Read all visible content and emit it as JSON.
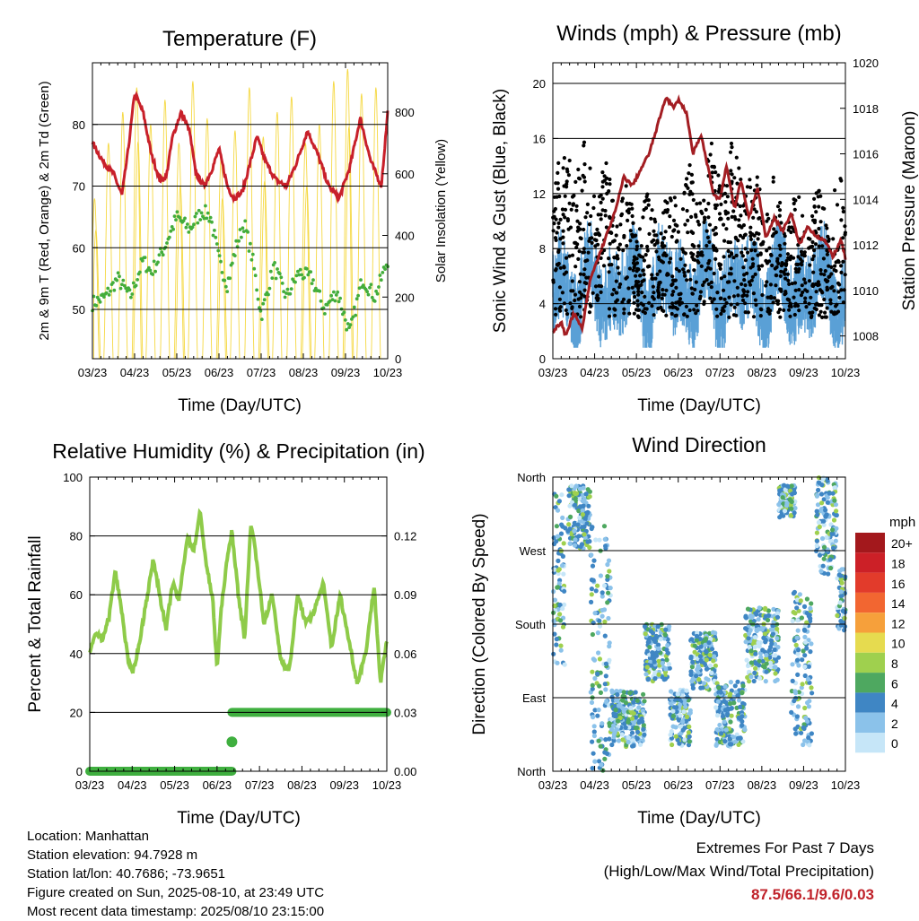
{
  "panels": {
    "temperature": {
      "title": "Temperature (F)",
      "ylabel_left": "2m & 9m T (Red, Orange) & 2m Td (Green)",
      "ylabel_right": "Solar Insolation (Yellow)",
      "xlabel": "Time (Day/UTC)",
      "left_ticks": [
        "50",
        "60",
        "70",
        "80"
      ],
      "right_ticks": [
        "0",
        "200",
        "400",
        "600",
        "800"
      ]
    },
    "winds": {
      "title": "Winds (mph) & Pressure (mb)",
      "ylabel_left": "Sonic Wind & Gust (Blue, Black)",
      "ylabel_right": "Station Pressure (Maroon)",
      "xlabel": "Time (Day/UTC)",
      "left_ticks": [
        "0",
        "4",
        "8",
        "12",
        "16",
        "20"
      ],
      "right_ticks": [
        "1008",
        "1010",
        "1012",
        "1014",
        "1016",
        "1018",
        "1020"
      ]
    },
    "humidity": {
      "title": "Relative Humidity (%) & Precipitation (in)",
      "ylabel_left": "Percent & Total Rainfall",
      "xlabel": "Time (Day/UTC)",
      "left_ticks": [
        "0",
        "20",
        "40",
        "60",
        "80",
        "100"
      ],
      "right_ticks": [
        "0.00",
        "0.03",
        "0.06",
        "0.09",
        "0.12"
      ]
    },
    "direction": {
      "title": "Wind Direction",
      "ylabel_left": "Direction (Colored By Speed)",
      "xlabel": "Time (Day/UTC)",
      "left_ticks": [
        "North",
        "East",
        "South",
        "West",
        "North"
      ]
    }
  },
  "x_tick_labels": [
    "03/23",
    "04/23",
    "05/23",
    "06/23",
    "07/23",
    "08/23",
    "09/23",
    "10/23"
  ],
  "legend": {
    "title": "mph",
    "labels": [
      "20+",
      "18",
      "16",
      "14",
      "12",
      "10",
      "8",
      "6",
      "4",
      "2",
      "0"
    ],
    "colors": [
      "#a3181c",
      "#cc2027",
      "#e23b2b",
      "#f26631",
      "#f6a03b",
      "#e6db4f",
      "#9fd04e",
      "#4ea860",
      "#3f86c4",
      "#8bc2ea",
      "#c6e6f8"
    ]
  },
  "colors": {
    "temperature_2m": "#c8202a",
    "dewpoint": "#43ad3b",
    "insolation": "#f5d842",
    "gust": "#000000",
    "wind": "#5aa0d6",
    "pressure": "#a31d22",
    "rh": "#8ecb49",
    "precip": "#3faf3f"
  },
  "info": {
    "location": "Location: Manhattan",
    "elevation": "Station elevation: 94.7928 m",
    "latlon": "Station lat/lon: 40.7686; -73.9651",
    "created": "Figure created on Sun, 2025-08-10, at 23:49 UTC",
    "recent": "Most recent data timestamp: 2025/08/10 23:15:00"
  },
  "extremes": {
    "line1": "Extremes For Past 7 Days",
    "line2": "(High/Low/Max Wind/Total Precipitation)",
    "values": "87.5/66.1/9.6/0.03"
  },
  "chart_data": [
    {
      "type": "line",
      "title": "Temperature (F)",
      "xlabel": "Time (Day/UTC)",
      "ylabel": "2m & 9m T (Red, Orange) & 2m Td (Green)",
      "y2label": "Solar Insolation (Yellow)",
      "ylim": [
        42,
        90
      ],
      "y2lim": [
        0,
        960
      ],
      "x_tick_labels": [
        "03/23",
        "04/23",
        "05/23",
        "06/23",
        "07/23",
        "08/23",
        "09/23",
        "10/23"
      ],
      "xlim": [
        0,
        7
      ],
      "series": [
        {
          "name": "2m & 9m T",
          "axis": "left",
          "x": [
            0,
            0.25,
            0.5,
            0.7,
            0.85,
            1.0,
            1.2,
            1.4,
            1.6,
            1.75,
            1.9,
            2.1,
            2.3,
            2.45,
            2.65,
            2.85,
            3.0,
            3.2,
            3.35,
            3.55,
            3.75,
            3.9,
            4.1,
            4.35,
            4.6,
            4.85,
            5.1,
            5.35,
            5.6,
            5.85,
            6.1,
            6.35,
            6.6,
            6.85,
            7.0
          ],
          "values": [
            77,
            74,
            72,
            68.5,
            76,
            85,
            82,
            75,
            71,
            71.5,
            78,
            82,
            79,
            72,
            70,
            73,
            76,
            70,
            68,
            69,
            74,
            78,
            74,
            71,
            70,
            74,
            79,
            75,
            70,
            68,
            73,
            81,
            74,
            70,
            82
          ]
        },
        {
          "name": "2m Td",
          "axis": "left",
          "x": [
            0,
            0.3,
            0.6,
            0.9,
            1.2,
            1.4,
            1.7,
            2.0,
            2.3,
            2.6,
            2.8,
            3.0,
            3.2,
            3.4,
            3.6,
            3.8,
            4.0,
            4.3,
            4.6,
            4.9,
            5.2,
            5.5,
            5.8,
            6.1,
            6.4,
            6.7,
            7.0
          ],
          "values": [
            51,
            52,
            55,
            52,
            58,
            56,
            60,
            65,
            63,
            66,
            65,
            58,
            54,
            60,
            64,
            58,
            49,
            57,
            52,
            56,
            55,
            50,
            53,
            46,
            55,
            52,
            58
          ]
        },
        {
          "name": "Solar Insolation",
          "axis": "right",
          "x": [
            0.05,
            0.38,
            0.72,
            1.05,
            1.38,
            1.72,
            2.05,
            2.38,
            2.72,
            3.05,
            3.38,
            3.72,
            4.05,
            4.38,
            4.72,
            5.05,
            5.38,
            5.72,
            6.05,
            6.38,
            6.72
          ],
          "values": [
            520,
            700,
            800,
            880,
            760,
            840,
            700,
            900,
            780,
            650,
            740,
            880,
            720,
            800,
            850,
            700,
            760,
            900,
            940,
            860,
            880
          ]
        }
      ]
    },
    {
      "type": "line",
      "title": "Winds (mph) & Pressure (mb)",
      "xlabel": "Time (Day/UTC)",
      "ylabel": "Sonic Wind & Gust (Blue, Black)",
      "y2label": "Station Pressure (Maroon)",
      "ylim": [
        0,
        21.5
      ],
      "y2lim": [
        1007,
        1020
      ],
      "x_tick_labels": [
        "03/23",
        "04/23",
        "05/23",
        "06/23",
        "07/23",
        "08/23",
        "09/23",
        "10/23"
      ],
      "xlim": [
        0,
        7
      ],
      "series": [
        {
          "name": "Station Pressure",
          "axis": "right",
          "x": [
            0,
            0.2,
            0.3,
            0.5,
            0.7,
            0.9,
            1.2,
            1.5,
            1.7,
            1.9,
            2.1,
            2.3,
            2.5,
            2.7,
            2.9,
            3.0,
            3.2,
            3.35,
            3.55,
            3.7,
            3.85,
            4.0,
            4.15,
            4.35,
            4.5,
            4.7,
            4.9,
            5.1,
            5.3,
            5.5,
            5.7,
            5.9,
            6.1,
            6.3,
            6.5,
            6.7,
            6.9,
            7.0
          ],
          "values": [
            1008.2,
            1008.6,
            1008.0,
            1009.0,
            1008.3,
            1010.5,
            1012.0,
            1013.5,
            1015.0,
            1014.6,
            1015.3,
            1016.0,
            1017.2,
            1018.5,
            1018.0,
            1018.4,
            1017.8,
            1016.0,
            1016.8,
            1015.5,
            1014.2,
            1014.0,
            1015.5,
            1013.6,
            1014.8,
            1013.2,
            1014.5,
            1012.3,
            1013.2,
            1012.6,
            1013.4,
            1012.0,
            1012.8,
            1012.4,
            1012.2,
            1011.5,
            1012.2,
            1011.4
          ]
        }
      ]
    },
    {
      "type": "line",
      "title": "Relative Humidity (%) & Precipitation (in)",
      "xlabel": "Time (Day/UTC)",
      "ylabel": "Percent & Total Rainfall",
      "ylim": [
        0,
        100
      ],
      "y2lim": [
        0,
        0.15
      ],
      "x_tick_labels": [
        "03/23",
        "04/23",
        "05/23",
        "06/23",
        "07/23",
        "08/23",
        "09/23",
        "10/23"
      ],
      "xlim": [
        0,
        7
      ],
      "series": [
        {
          "name": "Relative Humidity",
          "axis": "left",
          "x": [
            0,
            0.15,
            0.3,
            0.45,
            0.6,
            0.75,
            0.9,
            1.0,
            1.15,
            1.3,
            1.5,
            1.65,
            1.8,
            1.95,
            2.1,
            2.3,
            2.45,
            2.6,
            2.75,
            2.9,
            3.0,
            3.1,
            3.2,
            3.35,
            3.5,
            3.65,
            3.8,
            3.95,
            4.1,
            4.3,
            4.5,
            4.7,
            4.9,
            5.1,
            5.3,
            5.5,
            5.7,
            5.9,
            6.1,
            6.3,
            6.5,
            6.7,
            6.85,
            7.0
          ],
          "values": [
            40,
            47,
            45,
            52,
            68,
            55,
            38,
            33,
            42,
            55,
            72,
            60,
            48,
            64,
            58,
            80,
            75,
            88,
            70,
            58,
            35,
            55,
            68,
            82,
            60,
            45,
            85,
            70,
            50,
            60,
            38,
            34,
            60,
            50,
            55,
            64,
            42,
            60,
            45,
            30,
            40,
            63,
            30,
            44
          ]
        },
        {
          "name": "Total Rainfall",
          "axis": "right",
          "x": [
            0,
            3.35,
            3.36,
            3.37,
            7.0
          ],
          "values": [
            0,
            0,
            0.015,
            0.03,
            0.03
          ]
        }
      ]
    },
    {
      "type": "scatter",
      "title": "Wind Direction",
      "xlabel": "Time (Day/UTC)",
      "ylabel": "Direction (Colored By Speed)",
      "y_tick_labels": [
        "North",
        "East",
        "South",
        "West",
        "North"
      ],
      "ylim": [
        0,
        360
      ],
      "x_tick_labels": [
        "03/23",
        "04/23",
        "05/23",
        "06/23",
        "07/23",
        "08/23",
        "09/23",
        "10/23"
      ],
      "xlim": [
        0,
        7
      ],
      "colorbar": {
        "title": "mph",
        "labels": [
          "20+",
          "18",
          "16",
          "14",
          "12",
          "10",
          "8",
          "6",
          "4",
          "2",
          "0"
        ]
      },
      "clusters": [
        {
          "x": [
            0,
            0.3
          ],
          "dir": [
            130,
            340
          ]
        },
        {
          "x": [
            0.35,
            0.9
          ],
          "dir": [
            270,
            350
          ]
        },
        {
          "x": [
            0.9,
            1.4
          ],
          "dir": [
            0,
            300
          ]
        },
        {
          "x": [
            1.4,
            2.2
          ],
          "dir": [
            30,
            100
          ]
        },
        {
          "x": [
            2.2,
            2.8
          ],
          "dir": [
            110,
            180
          ]
        },
        {
          "x": [
            2.8,
            3.3
          ],
          "dir": [
            30,
            100
          ]
        },
        {
          "x": [
            3.3,
            3.9
          ],
          "dir": [
            100,
            170
          ]
        },
        {
          "x": [
            3.9,
            4.6
          ],
          "dir": [
            30,
            110
          ]
        },
        {
          "x": [
            4.6,
            5.4
          ],
          "dir": [
            110,
            200
          ]
        },
        {
          "x": [
            5.4,
            5.8
          ],
          "dir": [
            310,
            350
          ]
        },
        {
          "x": [
            5.7,
            6.2
          ],
          "dir": [
            30,
            220
          ]
        },
        {
          "x": [
            6.3,
            6.8
          ],
          "dir": [
            240,
            360
          ]
        },
        {
          "x": [
            6.8,
            7.0
          ],
          "dir": [
            170,
            250
          ]
        }
      ]
    }
  ]
}
